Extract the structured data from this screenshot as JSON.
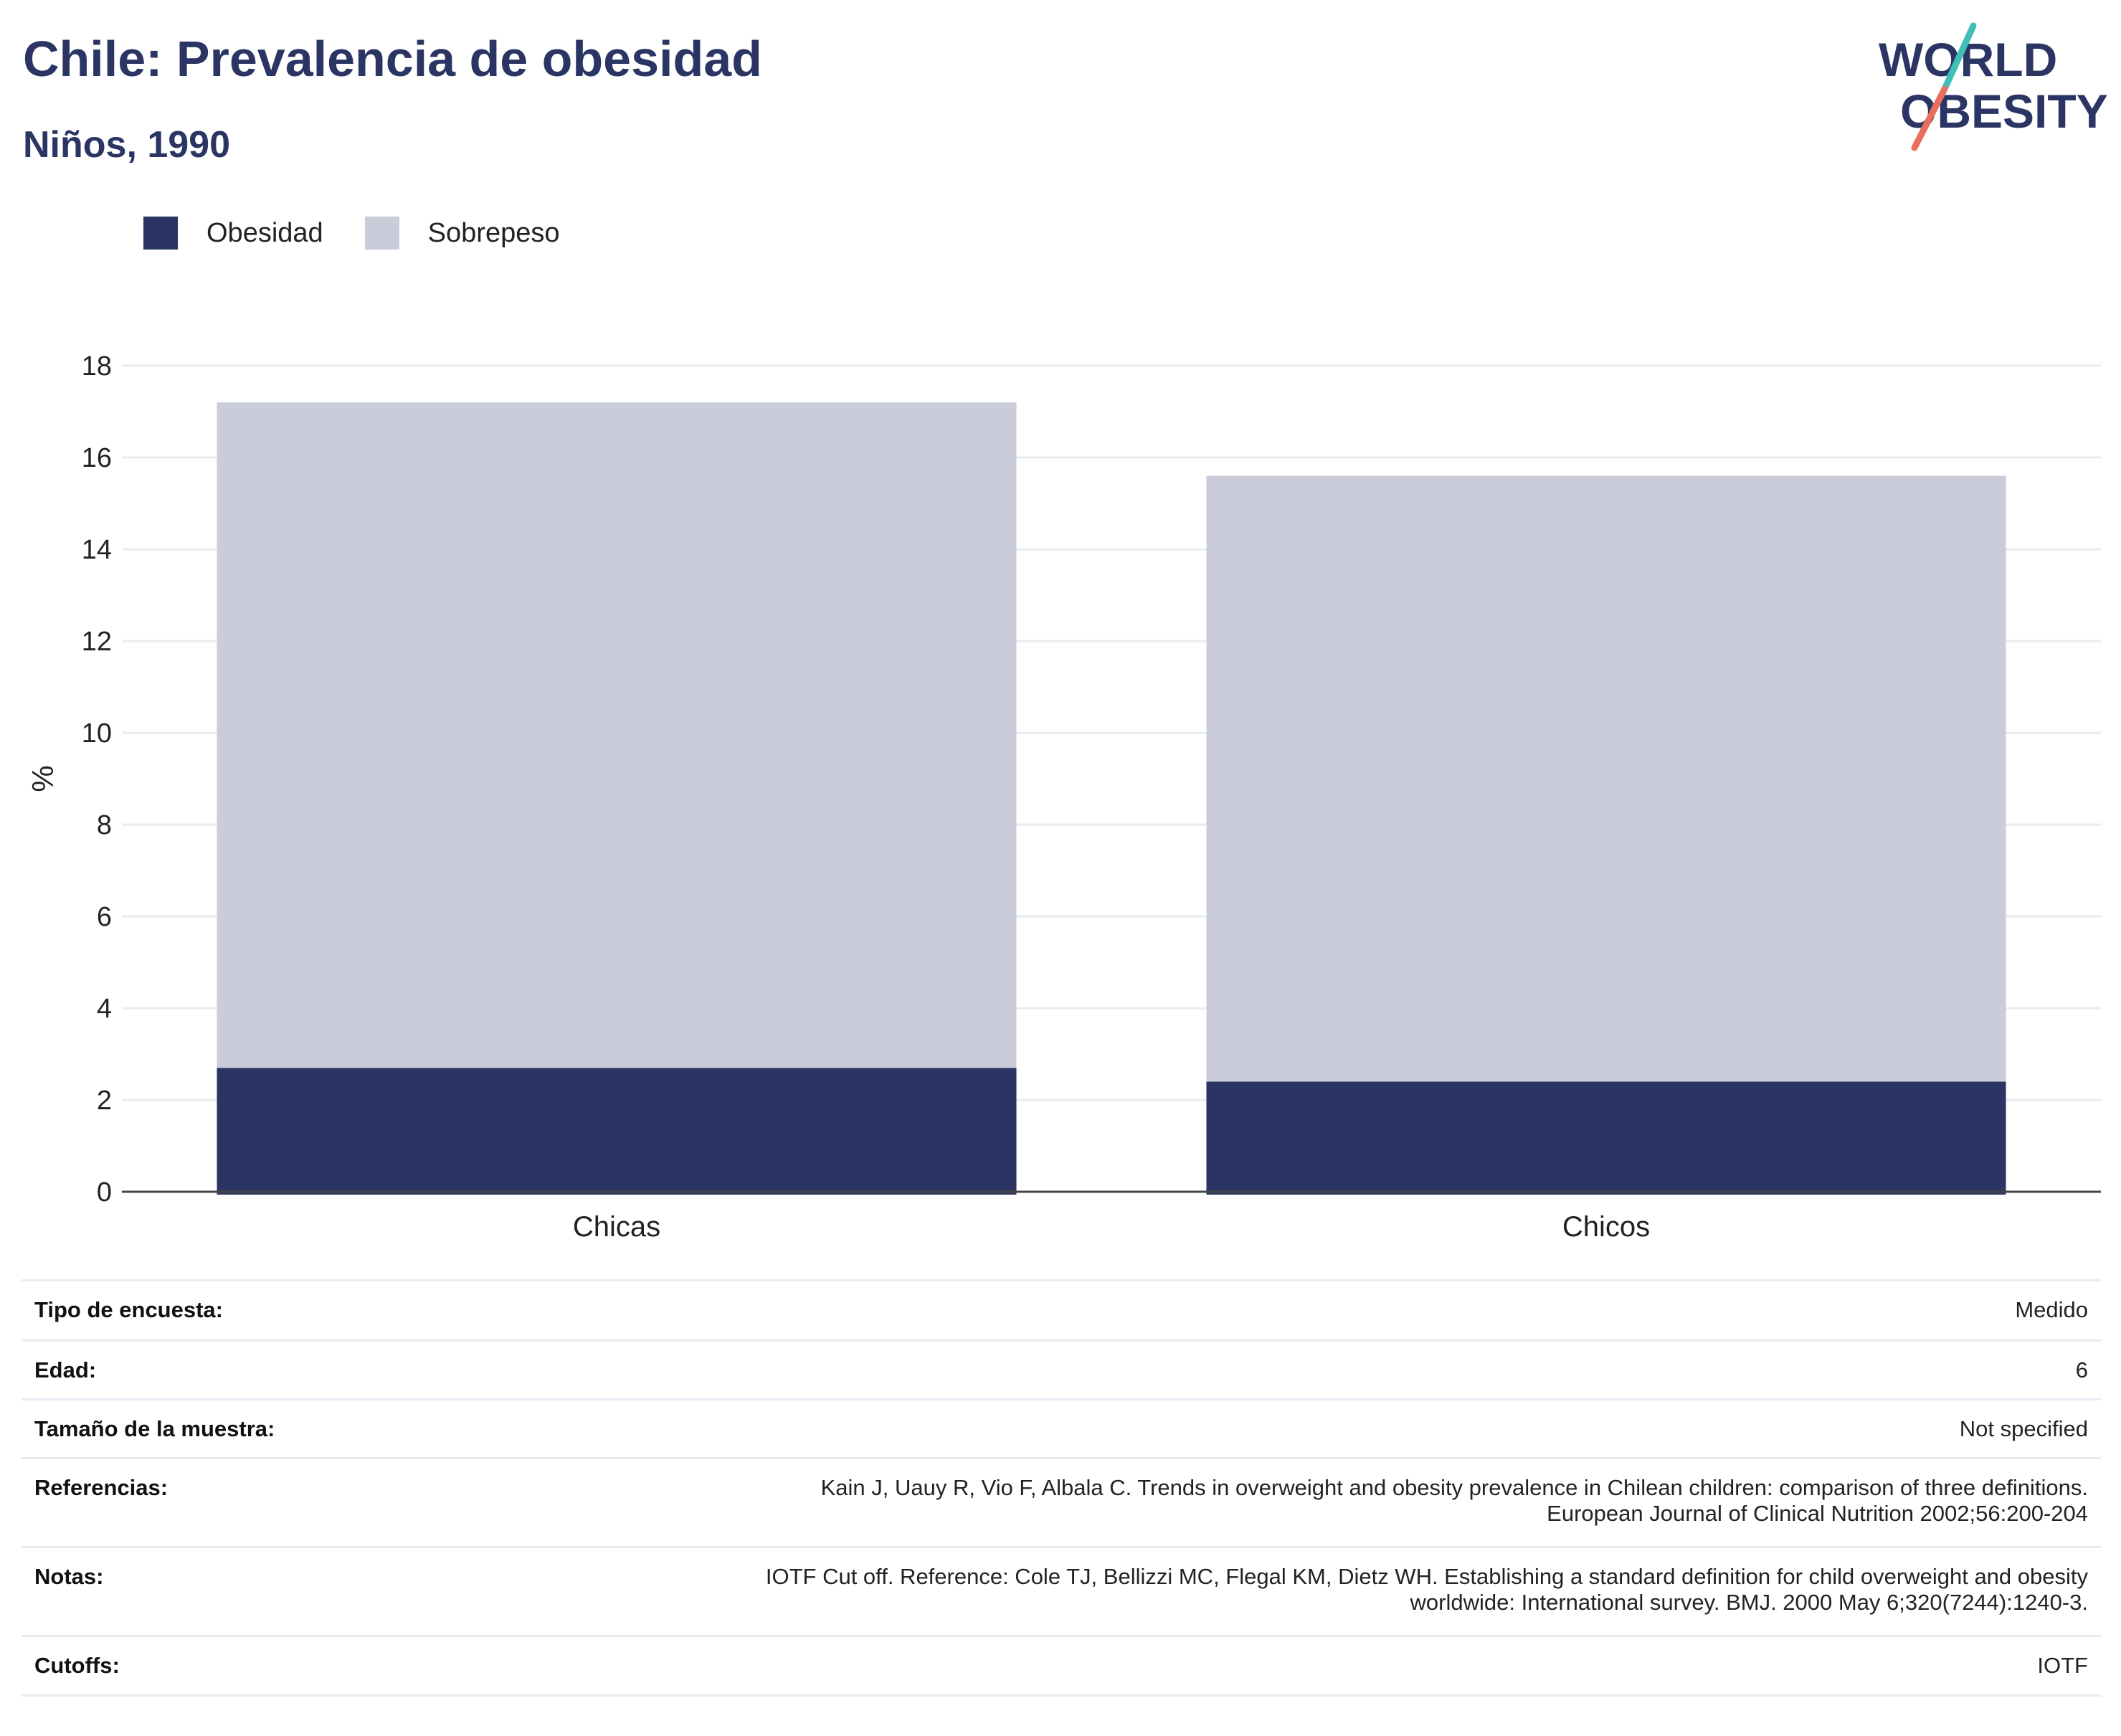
{
  "title": "Chile: Prevalencia de obesidad",
  "subtitle": "Niños, 1990",
  "logo": {
    "line1": "WORLD",
    "line2": "OBESITY"
  },
  "colors": {
    "obesidad": "#2a3564",
    "sobrepeso": "#cacdd9",
    "text": "#2a3564",
    "logo_teal": "#3fbfb8",
    "logo_coral": "#e86e5e"
  },
  "legend": [
    {
      "label": "Obesidad",
      "color": "#2a3564"
    },
    {
      "label": "Sobrepeso",
      "color": "#cacdd9"
    }
  ],
  "chart_data": {
    "type": "bar",
    "stacked": true,
    "categories": [
      "Chicas",
      "Chicos"
    ],
    "series": [
      {
        "name": "Obesidad",
        "values": [
          2.7,
          2.4
        ]
      },
      {
        "name": "Sobrepeso",
        "values": [
          14.5,
          13.2
        ]
      }
    ],
    "ylabel": "%",
    "ylim": [
      0,
      18
    ],
    "yticks": [
      0,
      2,
      4,
      6,
      8,
      10,
      12,
      14,
      16,
      18
    ],
    "grid": true,
    "legend_position": "top-left"
  },
  "meta": [
    {
      "key": "Tipo de encuesta:",
      "value": "Medido"
    },
    {
      "key": "Edad:",
      "value": "6"
    },
    {
      "key": "Tamaño de la muestra:",
      "value": "Not specified"
    },
    {
      "key": "Referencias:",
      "value": "Kain J, Uauy R, Vio F, Albala C. Trends in overweight and obesity prevalence in Chilean children: comparison of three definitions.\nEuropean Journal of Clinical Nutrition 2002;56:200-204"
    },
    {
      "key": "Notas:",
      "value": "IOTF Cut off. Reference: Cole TJ, Bellizzi MC, Flegal KM, Dietz WH. Establishing a standard definition for child overweight and obesity\nworldwide: International survey. BMJ. 2000 May 6;320(7244):1240-3."
    },
    {
      "key": "Cutoffs:",
      "value": "IOTF"
    }
  ]
}
